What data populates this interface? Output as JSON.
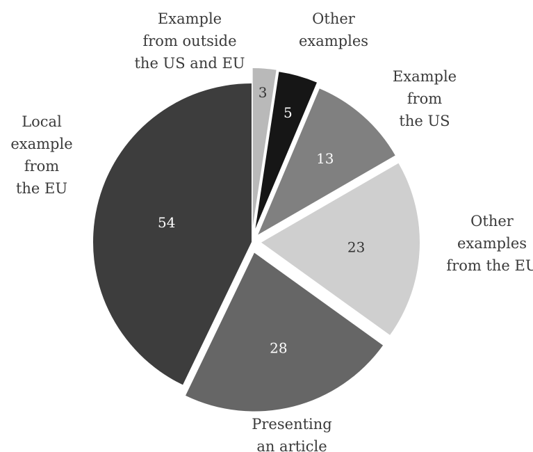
{
  "chart_data": {
    "type": "pie",
    "title": "",
    "slices": [
      {
        "label": "Example from outside the US and EU",
        "value": 3,
        "color": "#b9b9b9",
        "value_color": "#333333"
      },
      {
        "label": "Other examples",
        "value": 5,
        "color": "#161616",
        "value_color": "#ffffff"
      },
      {
        "label": "Example from the US",
        "value": 13,
        "color": "#808080",
        "value_color": "#ffffff"
      },
      {
        "label": "Other examples from the EU",
        "value": 23,
        "color": "#cfcfcf",
        "value_color": "#333333"
      },
      {
        "label": "Presenting an article",
        "value": 28,
        "color": "#666666",
        "value_color": "#ffffff"
      },
      {
        "label": "Local example from the EU",
        "value": 54,
        "color": "#3d3d3d",
        "value_color": "#ffffff"
      }
    ],
    "label_lines": [
      [
        "Example",
        "from outside",
        "the US and EU"
      ],
      [
        "Other",
        "examples"
      ],
      [
        "Example",
        "from",
        "the US"
      ],
      [
        "Other",
        "examples",
        "from the EU"
      ],
      [
        "Presenting",
        "an article"
      ],
      [
        "Local",
        "example",
        "from",
        "the EU"
      ]
    ]
  }
}
